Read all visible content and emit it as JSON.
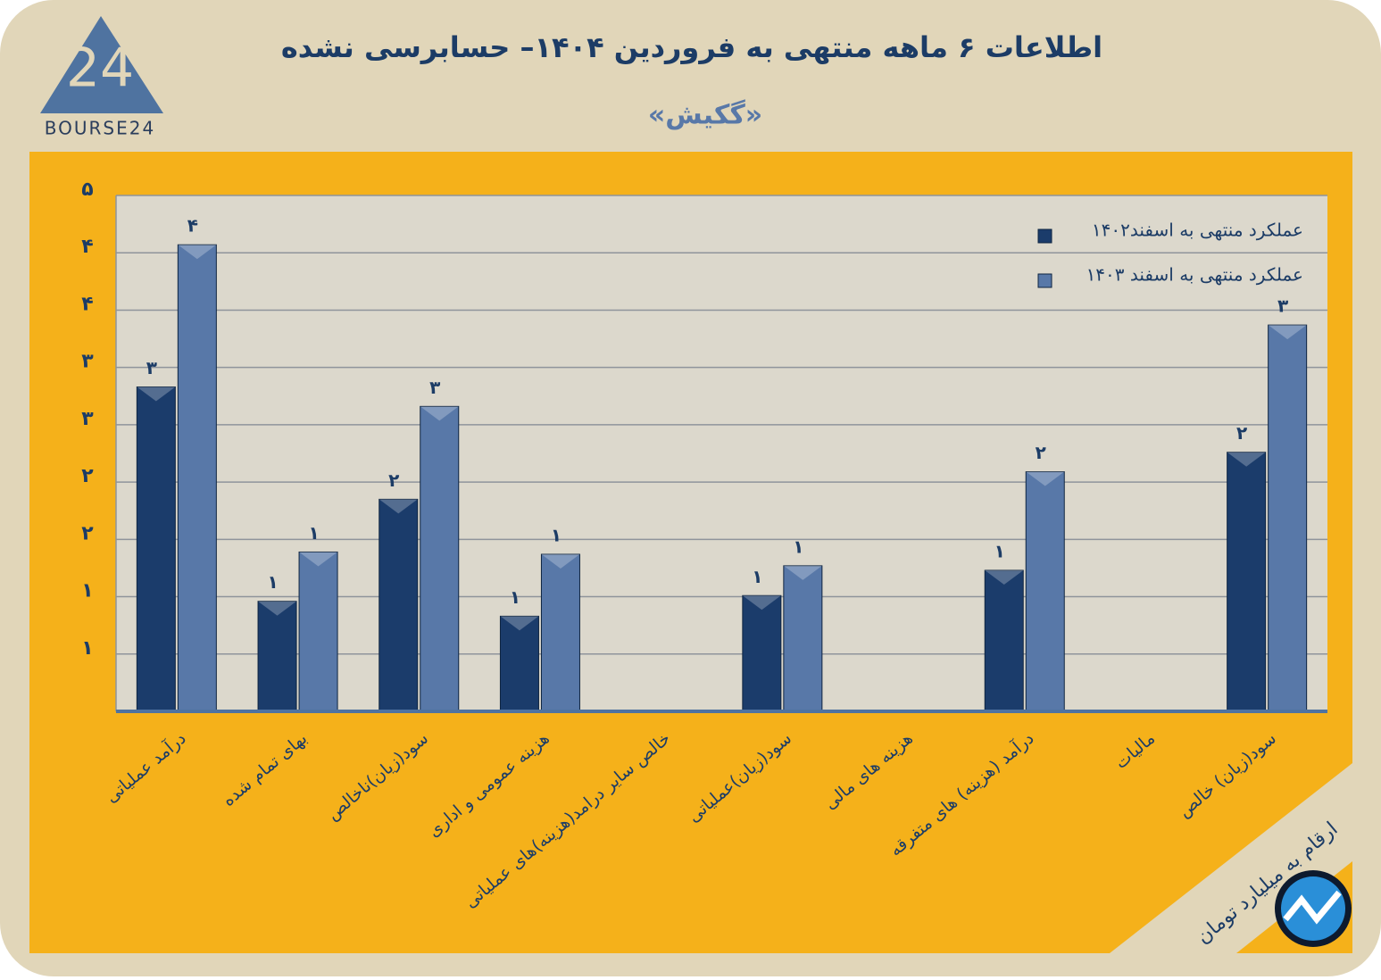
{
  "header": {
    "logo": "BOURSE24",
    "title": "اطلاعات ۶ ماهه منتهی به فروردین  ۱۴۰۴– حسابرسی نشده",
    "subtitle": "«گکیش»"
  },
  "chart_data": {
    "type": "bar",
    "categories": [
      "درآمد عملیاتی",
      "بهای تمام شده",
      "سود(زیان)ناخالص",
      "هزینه عمومی و اداری",
      "خالص سایر درامد(هزینه)های عملیاتی",
      "سود(زیان)عملیاتی",
      "هزینه های مالی",
      "درآمد (هزینه) های متفرقه",
      "مالیات",
      "سود(زیان) خالص"
    ],
    "series": [
      {
        "name": "عملکرد منتهی به اسفند۱۴۰۲",
        "color": "#1b3c6b",
        "values": [
          2.83,
          0.96,
          1.85,
          0.83,
          null,
          1.01,
          null,
          1.23,
          null,
          2.26
        ],
        "value_labels": [
          "۳",
          "۱",
          "۲",
          "۱",
          null,
          "۱",
          null,
          "۱",
          null,
          "۲"
        ]
      },
      {
        "name": "عملکرد منتهی به اسفند ۱۴۰۳",
        "color": "#5878a8",
        "values": [
          4.07,
          1.39,
          2.66,
          1.37,
          null,
          1.27,
          null,
          2.09,
          null,
          3.37
        ],
        "value_labels": [
          "۴",
          "۱",
          "۳",
          "۱",
          null,
          "۱",
          null,
          "۲",
          null,
          "۳"
        ]
      }
    ],
    "ylim": [
      0,
      4.5
    ],
    "yticks": [
      {
        "value": 0.5,
        "label": "۱"
      },
      {
        "value": 1,
        "label": "۱"
      },
      {
        "value": 1.5,
        "label": "۲"
      },
      {
        "value": 2,
        "label": "۲"
      },
      {
        "value": 2.5,
        "label": "۳"
      },
      {
        "value": 3,
        "label": "۳"
      },
      {
        "value": 3.5,
        "label": "۴"
      },
      {
        "value": 4,
        "label": "۴"
      },
      {
        "value": 4.5,
        "label": "۵"
      }
    ],
    "grid": true,
    "legend": "top-right",
    "note": "ارقام به میلیارد تومان"
  }
}
